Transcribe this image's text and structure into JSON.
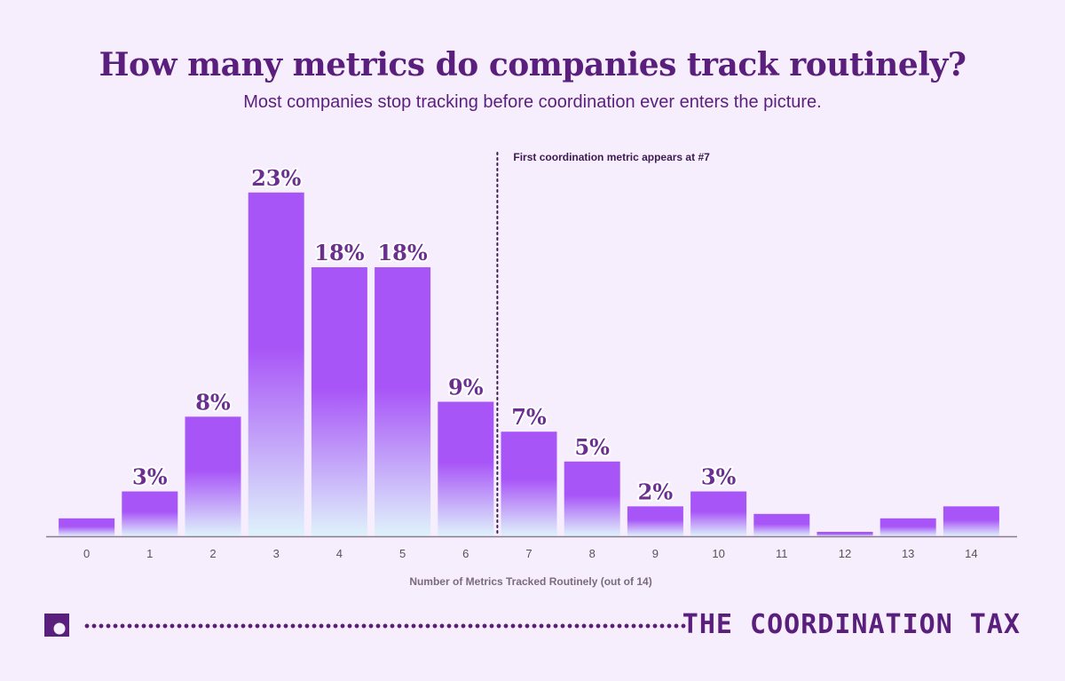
{
  "header": {
    "title": "How many metrics do companies track routinely?",
    "subtitle": "Most companies stop tracking before coordination ever enters the picture."
  },
  "chart_data": {
    "type": "bar",
    "categories": [
      "0",
      "1",
      "2",
      "3",
      "4",
      "5",
      "6",
      "7",
      "8",
      "9",
      "10",
      "11",
      "12",
      "13",
      "14"
    ],
    "values": [
      1.2,
      3,
      8,
      23,
      18,
      18,
      9,
      7,
      5,
      2,
      3,
      1.5,
      0.3,
      1.2,
      2
    ],
    "value_labels": [
      "",
      "3%",
      "8%",
      "23%",
      "18%",
      "18%",
      "9%",
      "7%",
      "5%",
      "2%",
      "3%",
      "",
      "",
      "",
      ""
    ],
    "xlabel": "Number of Metrics Tracked Routinely (out of 14)",
    "ylabel": "",
    "ylim": [
      0,
      24
    ],
    "grid": false,
    "annotation": {
      "text": "First coordination metric appears at #7",
      "position_between": [
        "6",
        "7"
      ]
    },
    "colors": {
      "bar_top": "#a855f7",
      "bar_bottom": "#dff3fb",
      "axis": "#8a7a8f",
      "label": "#6b2f8f"
    }
  },
  "footer": {
    "brand": "THE COORDINATION TAX",
    "logo_icon": "brand-logo-icon"
  }
}
